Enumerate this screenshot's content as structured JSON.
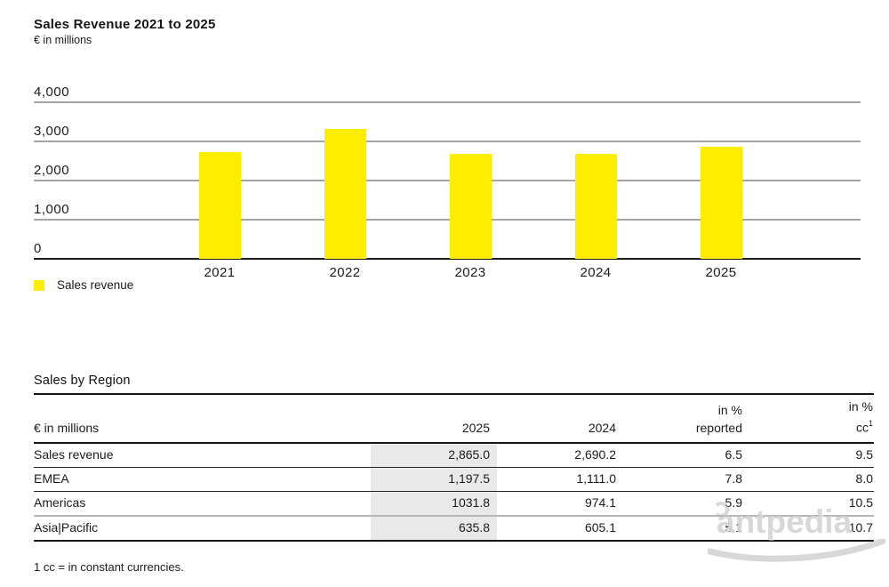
{
  "chart": {
    "title": "Sales Revenue 2021 to 2025",
    "subtitle": "€ in millions",
    "legend_label": "Sales revenue"
  },
  "chart_data": {
    "type": "bar",
    "title": "Sales Revenue 2021 to 2025",
    "unit_label": "€ in millions",
    "categories": [
      "2021",
      "2022",
      "2023",
      "2024",
      "2025"
    ],
    "values": [
      2722,
      3313,
      2674,
      2690.2,
      2865.0
    ],
    "series_name": "Sales revenue",
    "bar_color": "#ffed00",
    "ylim": [
      0,
      4000
    ],
    "yticks": [
      0,
      1000,
      2000,
      3000,
      4000
    ],
    "grid": true,
    "legend_position": "bottom-left"
  },
  "table": {
    "title": "Sales by Region",
    "header": {
      "unit": "€ in millions",
      "col_2025": "2025",
      "col_2024": "2024",
      "col_reported_line1": "in %",
      "col_reported_line2": "reported",
      "col_cc_line1": "in %",
      "col_cc_line2": "cc",
      "col_cc_sup": "1"
    },
    "rows": [
      {
        "label": "Sales revenue",
        "y2025": "2,865.0",
        "y2024": "2,690.2",
        "pct_reported": "6.5",
        "pct_cc": "9.5"
      },
      {
        "label": "EMEA",
        "y2025": "1,197.5",
        "y2024": "1,111.0",
        "pct_reported": "7.8",
        "pct_cc": "8.0"
      },
      {
        "label": "Americas",
        "y2025": "1031.8",
        "y2024": "974.1",
        "pct_reported": "5.9",
        "pct_cc": "10.5"
      },
      {
        "label": "Asia|Pacific",
        "y2025": "635.8",
        "y2024": "605.1",
        "pct_reported": "5.1",
        "pct_cc": "10.7"
      }
    ]
  },
  "footnote": "1 cc = in constant currencies.",
  "watermark": "antpedia",
  "colors": {
    "bar": "#ffed00",
    "grid": "#a5a5a5",
    "axis": "#1c1c1c",
    "shaded_column": "#e9e9e9"
  }
}
